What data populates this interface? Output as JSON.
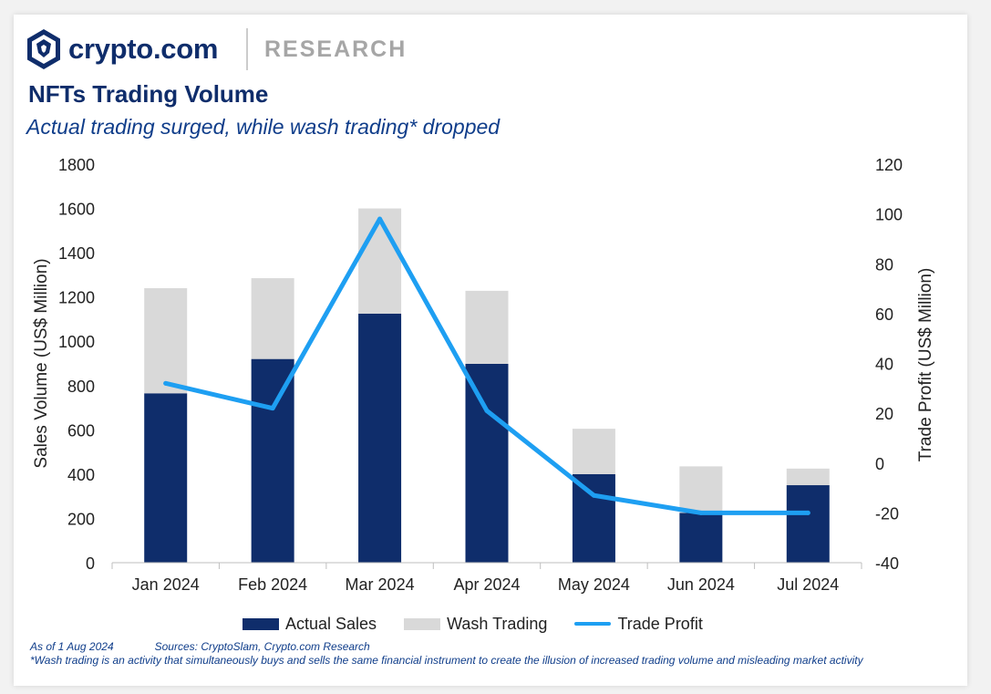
{
  "brand": {
    "name": "crypto.com",
    "section": "RESEARCH",
    "primary_color": "#0f2d6b",
    "section_color": "#a6a6a6",
    "logo_icon": "crypto-com-lion-shield-icon"
  },
  "chart_data": {
    "type": "bar",
    "title": "NFTs Trading Volume",
    "subtitle": "Actual trading surged, while wash trading* dropped",
    "categories": [
      "Jan 2024",
      "Feb 2024",
      "Mar 2024",
      "Apr 2024",
      "May 2024",
      "Jun 2024",
      "Jul 2024"
    ],
    "stacked": true,
    "series": [
      {
        "name": "Actual Sales",
        "type": "bar",
        "axis": "left",
        "color": "#0f2d6b",
        "values": [
          765,
          920,
          1125,
          898,
          400,
          225,
          350
        ]
      },
      {
        "name": "Wash Trading",
        "type": "bar",
        "axis": "left",
        "color": "#d9d9d9",
        "values": [
          475,
          365,
          475,
          330,
          205,
          210,
          75
        ]
      },
      {
        "name": "Trade Profit",
        "type": "line",
        "axis": "right",
        "color": "#1e9ff2",
        "values": [
          32,
          22,
          98,
          21,
          -13,
          -20,
          -20
        ]
      }
    ],
    "ylabel": "Sales Volume (US$ Million)",
    "y2label": "Trade Profit (US$ Million)",
    "ylim": [
      0,
      1800
    ],
    "y2lim": [
      -40,
      120
    ],
    "yticks": [
      "0",
      "200",
      "400",
      "600",
      "800",
      "1000",
      "1200",
      "1400",
      "1600",
      "1800"
    ],
    "y2ticks": [
      "-40",
      "-20",
      "0",
      "20",
      "40",
      "60",
      "80",
      "100",
      "120"
    ],
    "grid": false,
    "legend_position": "bottom"
  },
  "footer": {
    "as_of": "As of 1 Aug 2024",
    "sources": "Sources: CryptoSlam, Crypto.com Research",
    "definition": "*Wash trading is an activity that simultaneously buys and sells the same financial instrument to create the illusion of increased trading volume and misleading market activity"
  }
}
